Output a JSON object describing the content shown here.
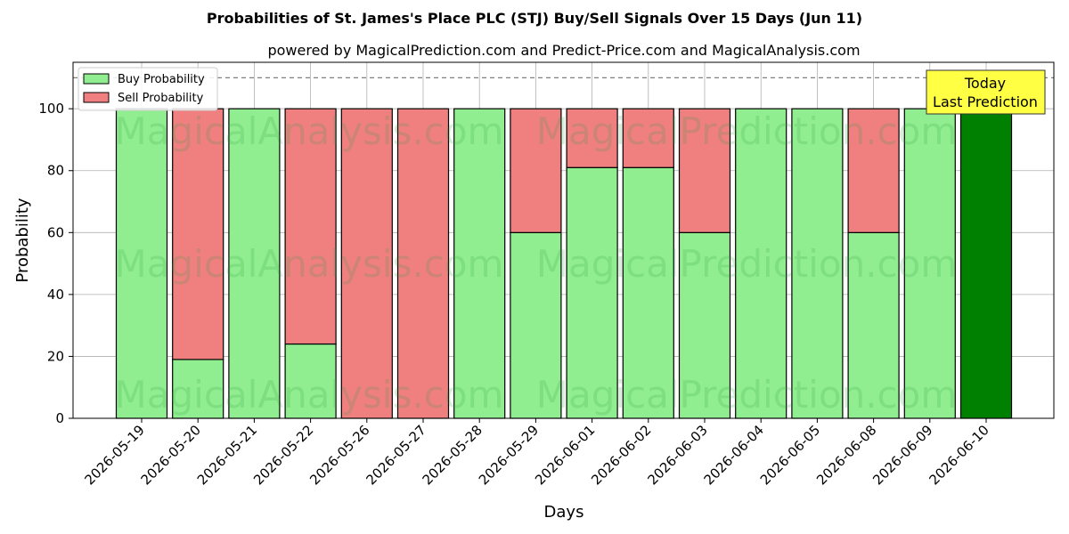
{
  "chart_data": {
    "type": "bar",
    "stacked": true,
    "title": "Probabilities of St. James's Place PLC (STJ) Buy/Sell Signals Over 15 Days (Jun 11)",
    "subtitle": "powered by MagicalPrediction.com and Predict-Price.com and MagicalAnalysis.com",
    "xlabel": "Days",
    "ylabel": "Probability",
    "ylim": [
      0,
      115
    ],
    "yticks": [
      0,
      20,
      40,
      60,
      80,
      100
    ],
    "reference_line": 110,
    "grid": true,
    "legend_position": "top-left",
    "categories": [
      "2026-05-19",
      "2026-05-20",
      "2026-05-21",
      "2026-05-22",
      "2026-05-26",
      "2026-05-27",
      "2026-05-28",
      "2026-05-29",
      "2026-06-01",
      "2026-06-02",
      "2026-06-03",
      "2026-06-04",
      "2026-06-05",
      "2026-06-08",
      "2026-06-09",
      "2026-06-10"
    ],
    "series": [
      {
        "name": "Buy Probability",
        "color": "#90ee90",
        "values": [
          100,
          19,
          100,
          24,
          0,
          0,
          100,
          60,
          81,
          81,
          60,
          100,
          100,
          60,
          100,
          100
        ]
      },
      {
        "name": "Sell Probability",
        "color": "#f08080",
        "values": [
          0,
          81,
          0,
          76,
          100,
          100,
          0,
          40,
          19,
          19,
          40,
          0,
          0,
          40,
          0,
          0
        ]
      }
    ],
    "highlight": {
      "index": 15,
      "color": "#008000"
    },
    "annotation": {
      "lines": [
        "Today",
        "Last Prediction"
      ],
      "background": "#ffff44"
    },
    "watermarks": [
      "MagicalAnalysis.com",
      "MagicalPrediction.com"
    ]
  }
}
